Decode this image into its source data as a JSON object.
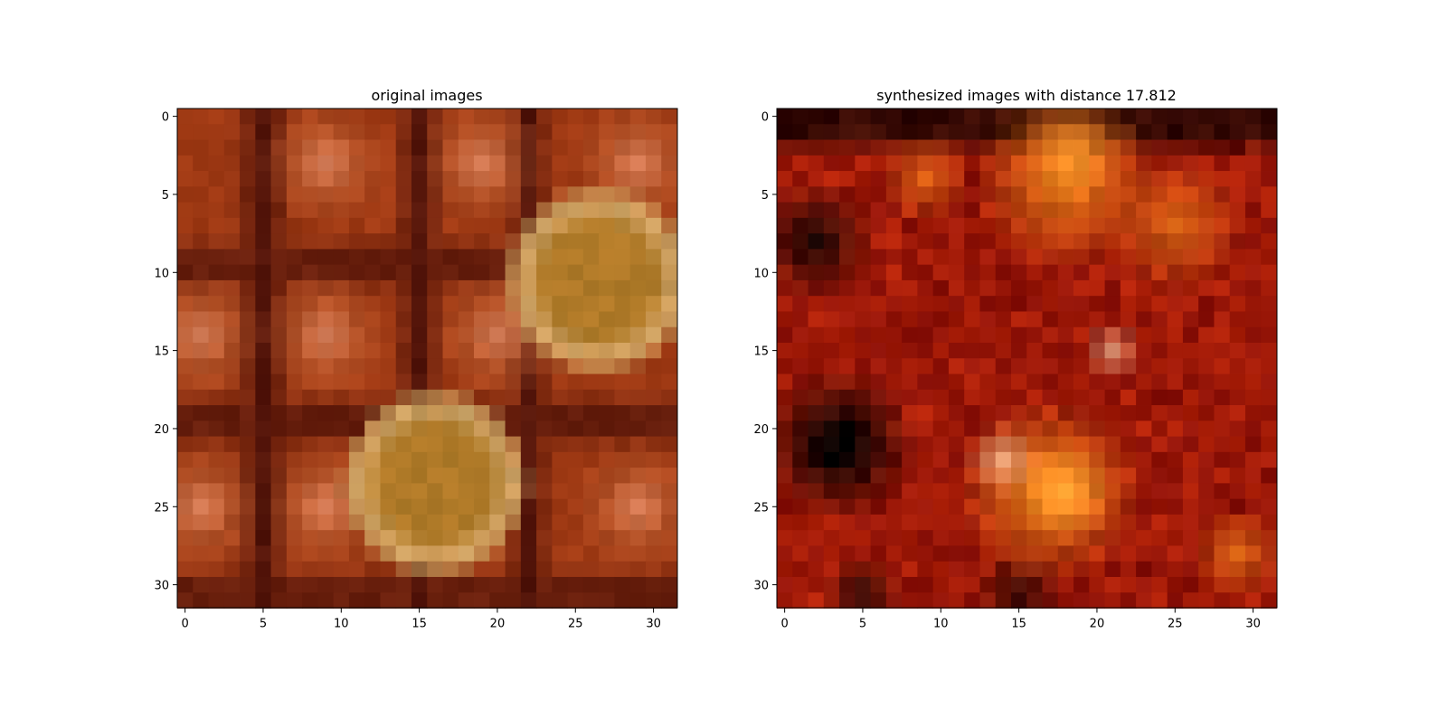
{
  "chart_data": [
    {
      "type": "image",
      "title": "original images",
      "image_size": [
        32,
        32
      ],
      "x_ticks": [
        "0",
        "5",
        "10",
        "15",
        "20",
        "25",
        "30"
      ],
      "y_ticks": [
        "0",
        "5",
        "10",
        "15",
        "20",
        "25",
        "30"
      ],
      "xlim": [
        -0.5,
        31.5
      ],
      "ylim": [
        31.5,
        -0.5
      ],
      "grid": false,
      "palette": {
        "background": "#a03a14",
        "dark": "#3a0806",
        "warm": "#c86a3a",
        "light": "#e08a6a",
        "gold": "#d8b070",
        "gold_center": "#b07a28"
      }
    },
    {
      "type": "image",
      "title": "synthesized images with distance 17.812",
      "image_size": [
        32,
        32
      ],
      "x_ticks": [
        "0",
        "5",
        "10",
        "15",
        "20",
        "25",
        "30"
      ],
      "y_ticks": [
        "0",
        "5",
        "10",
        "15",
        "20",
        "25",
        "30"
      ],
      "xlim": [
        -0.5,
        31.5
      ],
      "ylim": [
        31.5,
        -0.5
      ],
      "grid": false,
      "palette": {
        "background": "#8a1008",
        "dark": "#080202",
        "red": "#c02808",
        "orange": "#e87818",
        "bright": "#ffa030",
        "pale": "#f0b890"
      }
    }
  ]
}
